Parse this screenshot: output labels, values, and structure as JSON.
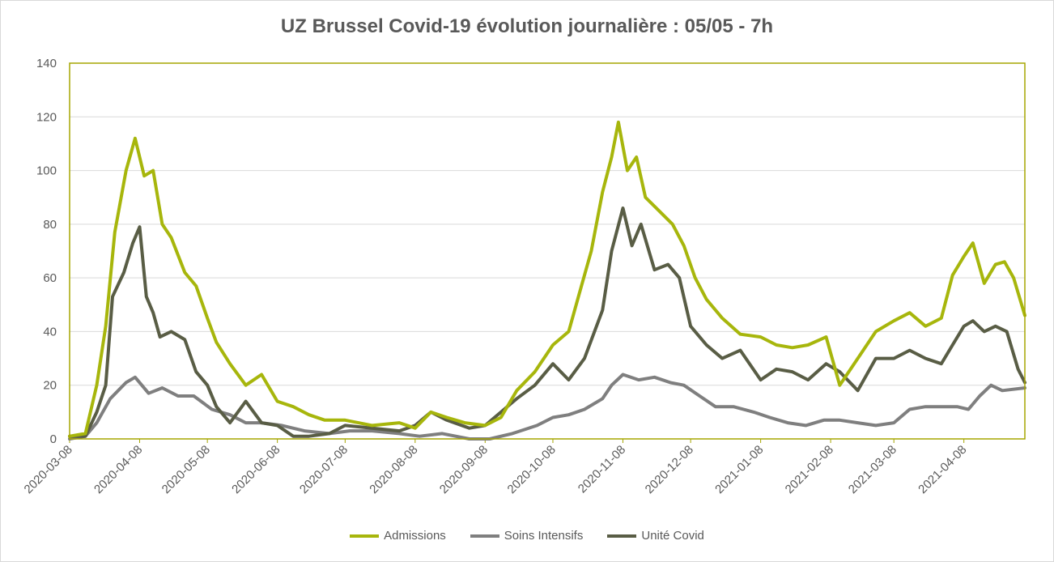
{
  "chart_data": {
    "type": "line",
    "title": "UZ Brussel Covid-19 évolution journalière : 05/05 - 7h",
    "xlabel": "",
    "ylabel": "",
    "ylim": [
      0,
      140
    ],
    "yticks": [
      0,
      20,
      40,
      60,
      80,
      100,
      120,
      140
    ],
    "xlim": [
      "2020-03-08",
      "2021-05-05"
    ],
    "xticks": [
      "2020-03-08",
      "2020-04-08",
      "2020-05-08",
      "2020-06-08",
      "2020-07-08",
      "2020-08-08",
      "2020-09-08",
      "2020-10-08",
      "2020-11-08",
      "2020-12-08",
      "2021-01-08",
      "2021-02-08",
      "2021-03-08",
      "2021-04-08"
    ],
    "grid": "horizontal",
    "legend_position": "bottom",
    "plot_border_color": "#a5a500",
    "series": [
      {
        "name": "Admissions",
        "color": "#a7b60c",
        "x": [
          "2020-03-08",
          "2020-03-15",
          "2020-03-20",
          "2020-03-24",
          "2020-03-28",
          "2020-04-02",
          "2020-04-06",
          "2020-04-10",
          "2020-04-14",
          "2020-04-18",
          "2020-04-22",
          "2020-04-28",
          "2020-05-03",
          "2020-05-08",
          "2020-05-12",
          "2020-05-18",
          "2020-05-25",
          "2020-06-01",
          "2020-06-08",
          "2020-06-15",
          "2020-06-22",
          "2020-06-29",
          "2020-07-08",
          "2020-07-20",
          "2020-08-01",
          "2020-08-08",
          "2020-08-15",
          "2020-08-22",
          "2020-08-30",
          "2020-09-08",
          "2020-09-15",
          "2020-09-22",
          "2020-09-30",
          "2020-10-08",
          "2020-10-15",
          "2020-10-20",
          "2020-10-25",
          "2020-10-30",
          "2020-11-03",
          "2020-11-06",
          "2020-11-10",
          "2020-11-14",
          "2020-11-18",
          "2020-11-24",
          "2020-11-30",
          "2020-12-05",
          "2020-12-10",
          "2020-12-15",
          "2020-12-22",
          "2020-12-30",
          "2021-01-08",
          "2021-01-15",
          "2021-01-22",
          "2021-01-29",
          "2021-02-06",
          "2021-02-12",
          "2021-02-20",
          "2021-02-28",
          "2021-03-08",
          "2021-03-15",
          "2021-03-22",
          "2021-03-29",
          "2021-04-03",
          "2021-04-08",
          "2021-04-12",
          "2021-04-17",
          "2021-04-22",
          "2021-04-26",
          "2021-04-30",
          "2021-05-05"
        ],
        "y": [
          1,
          2,
          20,
          42,
          77,
          100,
          112,
          98,
          100,
          80,
          75,
          62,
          57,
          45,
          36,
          28,
          20,
          24,
          14,
          12,
          9,
          7,
          7,
          5,
          6,
          4,
          10,
          8,
          6,
          5,
          8,
          18,
          25,
          35,
          40,
          55,
          70,
          92,
          105,
          118,
          100,
          105,
          90,
          85,
          80,
          72,
          60,
          52,
          45,
          39,
          38,
          35,
          34,
          35,
          38,
          20,
          30,
          40,
          44,
          47,
          42,
          45,
          61,
          68,
          73,
          58,
          65,
          66,
          60,
          46
        ]
      },
      {
        "name": "Soins Intensifs",
        "color": "#7f7f7f",
        "x": [
          "2020-03-08",
          "2020-03-15",
          "2020-03-20",
          "2020-03-26",
          "2020-04-02",
          "2020-04-06",
          "2020-04-12",
          "2020-04-18",
          "2020-04-25",
          "2020-05-02",
          "2020-05-10",
          "2020-05-18",
          "2020-05-25",
          "2020-06-01",
          "2020-06-10",
          "2020-06-20",
          "2020-07-01",
          "2020-07-10",
          "2020-07-20",
          "2020-08-01",
          "2020-08-10",
          "2020-08-20",
          "2020-09-01",
          "2020-09-10",
          "2020-09-20",
          "2020-10-01",
          "2020-10-08",
          "2020-10-15",
          "2020-10-22",
          "2020-10-30",
          "2020-11-03",
          "2020-11-08",
          "2020-11-15",
          "2020-11-22",
          "2020-11-29",
          "2020-12-05",
          "2020-12-12",
          "2020-12-19",
          "2020-12-27",
          "2021-01-05",
          "2021-01-12",
          "2021-01-20",
          "2021-01-28",
          "2021-02-05",
          "2021-02-12",
          "2021-02-20",
          "2021-02-28",
          "2021-03-08",
          "2021-03-15",
          "2021-03-22",
          "2021-03-29",
          "2021-04-05",
          "2021-04-10",
          "2021-04-15",
          "2021-04-20",
          "2021-04-25",
          "2021-05-05"
        ],
        "y": [
          0,
          1,
          6,
          15,
          21,
          23,
          17,
          19,
          16,
          16,
          11,
          9,
          6,
          6,
          5,
          3,
          2,
          3,
          3,
          2,
          1,
          2,
          0,
          0,
          2,
          5,
          8,
          9,
          11,
          15,
          20,
          24,
          22,
          23,
          21,
          20,
          16,
          12,
          12,
          10,
          8,
          6,
          5,
          7,
          7,
          6,
          5,
          6,
          11,
          12,
          12,
          12,
          11,
          16,
          20,
          18,
          19
        ]
      },
      {
        "name": "Unité Covid",
        "color": "#595d45",
        "x": [
          "2020-03-08",
          "2020-03-15",
          "2020-03-20",
          "2020-03-24",
          "2020-03-27",
          "2020-04-01",
          "2020-04-05",
          "2020-04-08",
          "2020-04-11",
          "2020-04-14",
          "2020-04-17",
          "2020-04-22",
          "2020-04-28",
          "2020-05-03",
          "2020-05-08",
          "2020-05-12",
          "2020-05-18",
          "2020-05-25",
          "2020-06-01",
          "2020-06-08",
          "2020-06-15",
          "2020-06-22",
          "2020-07-01",
          "2020-07-08",
          "2020-07-20",
          "2020-08-01",
          "2020-08-08",
          "2020-08-15",
          "2020-08-22",
          "2020-09-01",
          "2020-09-08",
          "2020-09-15",
          "2020-09-22",
          "2020-09-30",
          "2020-10-08",
          "2020-10-15",
          "2020-10-22",
          "2020-10-30",
          "2020-11-03",
          "2020-11-08",
          "2020-11-12",
          "2020-11-16",
          "2020-11-22",
          "2020-11-28",
          "2020-12-03",
          "2020-12-08",
          "2020-12-15",
          "2020-12-22",
          "2020-12-30",
          "2021-01-08",
          "2021-01-15",
          "2021-01-22",
          "2021-01-29",
          "2021-02-06",
          "2021-02-12",
          "2021-02-20",
          "2021-02-28",
          "2021-03-08",
          "2021-03-15",
          "2021-03-22",
          "2021-03-29",
          "2021-04-03",
          "2021-04-08",
          "2021-04-12",
          "2021-04-17",
          "2021-04-22",
          "2021-04-27",
          "2021-05-02",
          "2021-05-05"
        ],
        "y": [
          1,
          1,
          10,
          20,
          53,
          62,
          73,
          79,
          53,
          47,
          38,
          40,
          37,
          25,
          20,
          12,
          6,
          14,
          6,
          5,
          1,
          1,
          2,
          5,
          4,
          3,
          5,
          10,
          7,
          4,
          5,
          10,
          15,
          20,
          28,
          22,
          30,
          48,
          70,
          86,
          72,
          80,
          63,
          65,
          60,
          42,
          35,
          30,
          33,
          22,
          26,
          25,
          22,
          28,
          25,
          18,
          30,
          30,
          33,
          30,
          28,
          35,
          42,
          44,
          40,
          42,
          40,
          26,
          21
        ]
      }
    ]
  }
}
